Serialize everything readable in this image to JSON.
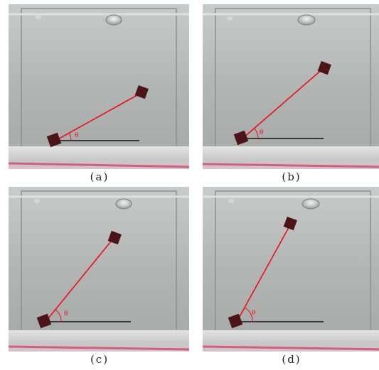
{
  "figure": {
    "panels": [
      {
        "caption": "(a)",
        "angle_label": "θ"
      },
      {
        "caption": "(b)",
        "angle_label": "θ"
      },
      {
        "caption": "(c)",
        "angle_label": "θ"
      },
      {
        "caption": "(d)",
        "angle_label": "θ"
      }
    ]
  },
  "colors": {
    "glass": "#b6b8b7",
    "glass_dark": "#8c8e8d",
    "water_line": "#e9ecec",
    "tank_base": "#d8d8d8",
    "red_line": "#e8101a",
    "black_line": "#111111",
    "cube": "#4a1418",
    "pink_tint": "#c83a60"
  }
}
